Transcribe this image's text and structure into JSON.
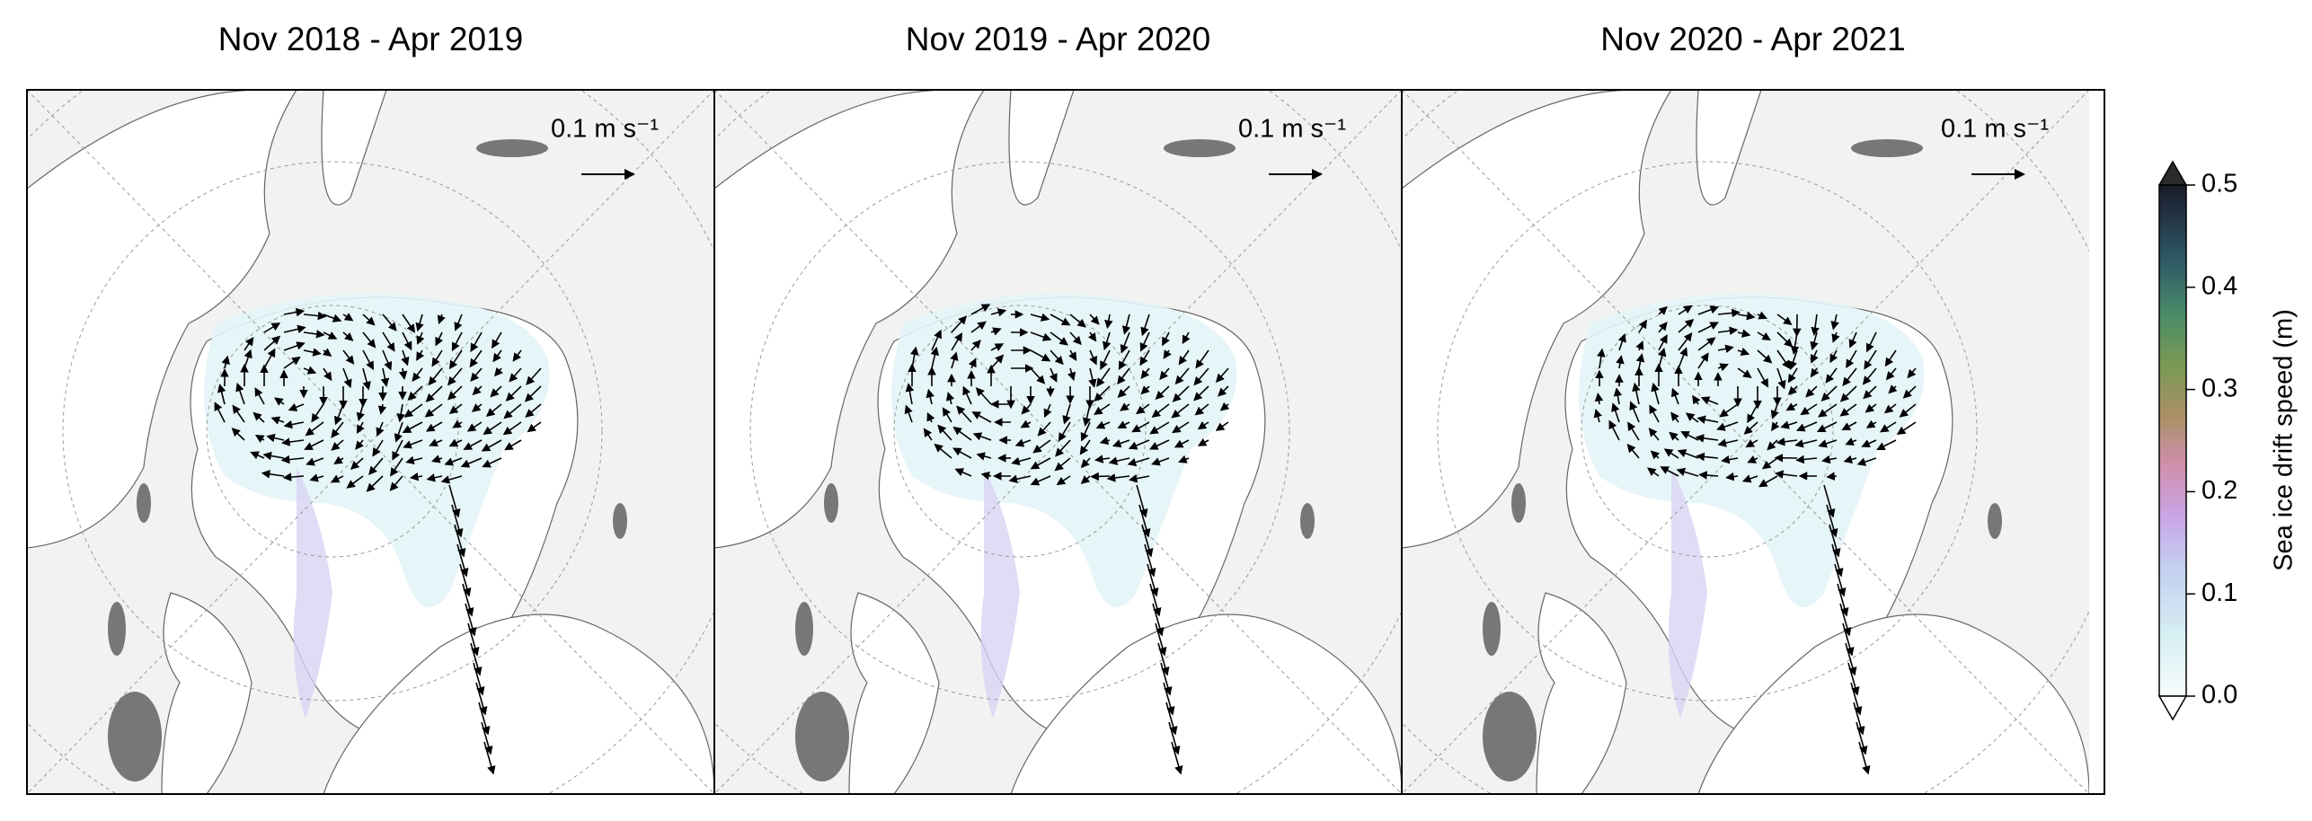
{
  "panels": [
    {
      "title": "Nov 2018 - Apr 2019",
      "scale_label": "0.1 m s⁻¹"
    },
    {
      "title": "Nov 2019 - Apr 2020",
      "scale_label": "0.1 m s⁻¹"
    },
    {
      "title": "Nov 2020 - Apr 2021",
      "scale_label": "0.1 m s⁻¹"
    }
  ],
  "colorbar": {
    "label": "Sea ice drift speed (m)",
    "lim": [
      0,
      0.5
    ],
    "ticks": [
      {
        "value": 0,
        "label": "0.0"
      },
      0.1,
      0.2,
      0.3,
      0.4,
      0.5
    ]
  }
}
